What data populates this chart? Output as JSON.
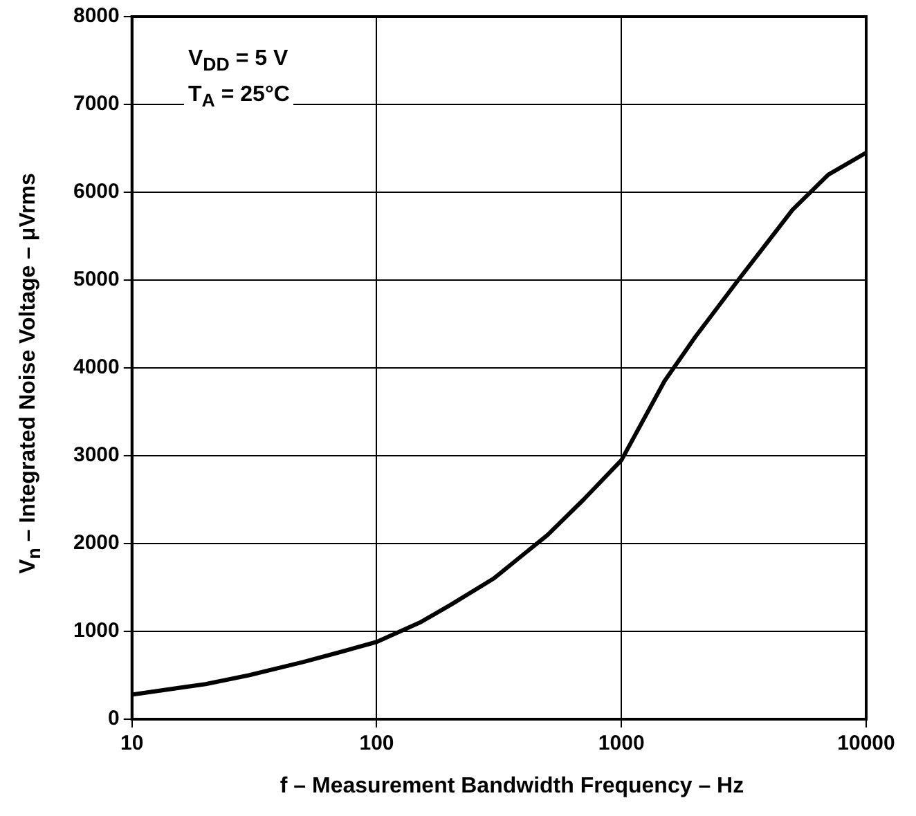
{
  "chart_data": {
    "type": "line",
    "xlabel": "f – Measurement Bandwidth Frequency – Hz",
    "ylabel": "V$_{n}$ – Integrated Noise Voltage – μVrms",
    "annotations": [
      "V$_{DD}$ = 5 V",
      "T$_{A}$ = 25°C"
    ],
    "x": [
      10,
      20,
      30,
      50,
      70,
      100,
      150,
      200,
      300,
      500,
      700,
      1000,
      1500,
      2000,
      3000,
      4000,
      5000,
      7000,
      10000
    ],
    "series": [
      {
        "color": "#000000",
        "values": [
          280,
          400,
          500,
          650,
          760,
          880,
          1100,
          1300,
          1600,
          2100,
          2500,
          2950,
          3850,
          4350,
          5000,
          5450,
          5800,
          6200,
          6450
        ]
      }
    ],
    "log": "x",
    "xlim": [
      10,
      10000
    ],
    "xticks": [
      10,
      100,
      1000,
      10000
    ],
    "ylim": [
      0,
      8000
    ],
    "yticks": [
      0,
      1000,
      2000,
      3000,
      4000,
      5000,
      6000,
      7000,
      8000
    ],
    "grid": true,
    "legend": false
  }
}
